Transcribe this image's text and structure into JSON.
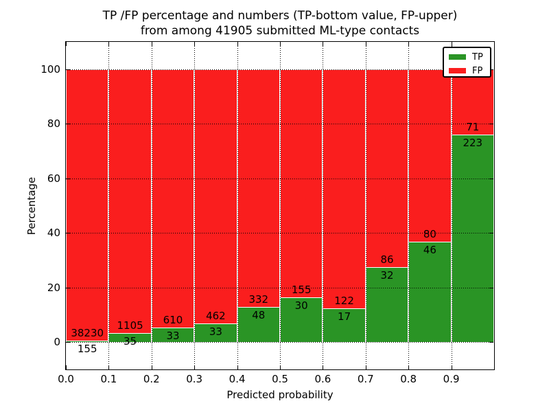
{
  "figure": {
    "title_line1": "TP /FP percentage and numbers (TP-bottom value, FP-upper)",
    "title_line2": "from among 41905 submitted ML-type contacts",
    "xlabel": "Predicted probability",
    "ylabel": "Percentage"
  },
  "chart_data": {
    "type": "bar",
    "stacked": true,
    "normalized_to_percent": 100,
    "title": "TP /FP percentage and numbers (TP-bottom value, FP-upper) from among 41905 submitted ML-type contacts",
    "xlabel": "Predicted probability",
    "ylabel": "Percentage",
    "total_contacts": 41905,
    "xlim": [
      0.0,
      1.0
    ],
    "ylim": [
      -10,
      110
    ],
    "bin_width": 0.1,
    "xtick_labels": [
      "0.0",
      "0.1",
      "0.2",
      "0.3",
      "0.4",
      "0.5",
      "0.6",
      "0.7",
      "0.8",
      "0.9"
    ],
    "ytick_values": [
      0,
      20,
      40,
      60,
      80,
      100
    ],
    "categories": [
      "0.0-0.1",
      "0.1-0.2",
      "0.2-0.3",
      "0.3-0.4",
      "0.4-0.5",
      "0.5-0.6",
      "0.6-0.7",
      "0.7-0.8",
      "0.8-0.9",
      "0.9-1.0"
    ],
    "series": [
      {
        "name": "TP",
        "color": "#2a9425",
        "counts": [
          155,
          35,
          33,
          33,
          48,
          30,
          17,
          32,
          46,
          223
        ]
      },
      {
        "name": "FP",
        "color": "#fa1e1e",
        "counts": [
          38230,
          1105,
          610,
          462,
          332,
          155,
          122,
          86,
          80,
          71
        ]
      }
    ],
    "grid": "dotted-black-on-top",
    "legend_position": "upper right",
    "bar_edge_color": "#ffffff"
  }
}
